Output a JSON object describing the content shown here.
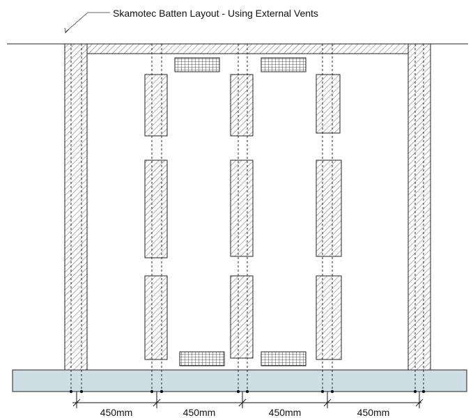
{
  "title": "Skamotec Batten Layout -  Using External Vents",
  "dimensions": [
    "450mm",
    "450mm",
    "450mm",
    "450mm"
  ],
  "colors": {
    "line": "#222222",
    "hatch": "#666666",
    "base_fill": "#cfdde4",
    "vent_grid": "#222222",
    "background": "#ffffff"
  }
}
